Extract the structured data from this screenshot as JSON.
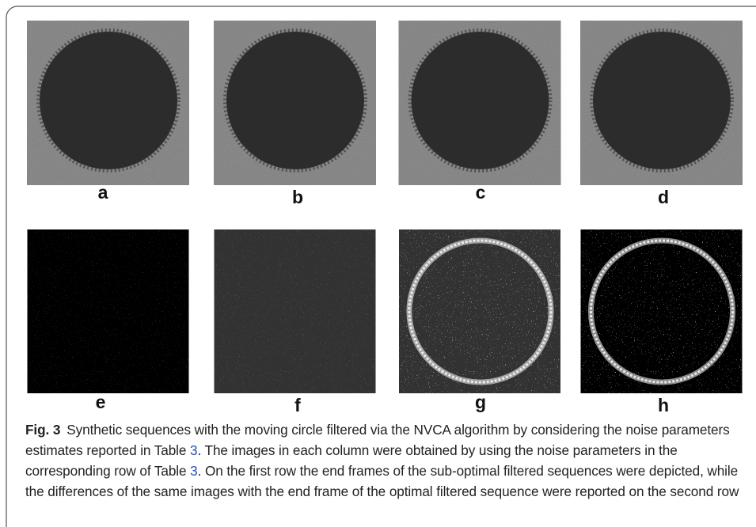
{
  "panels": [
    {
      "label": "a"
    },
    {
      "label": "b"
    },
    {
      "label": "c"
    },
    {
      "label": "d"
    },
    {
      "label": "e"
    },
    {
      "label": "f"
    },
    {
      "label": "g"
    },
    {
      "label": "h"
    }
  ],
  "caption": {
    "label": "Fig. 3",
    "segments": [
      {
        "text": "Synthetic sequences with the moving circle filtered via the NVCA algorithm by considering the noise parameters estimates reported in Table "
      },
      {
        "text": "3",
        "link": true
      },
      {
        "text": ". The images in each column were obtained by using the noise parameters in the corresponding row of Table "
      },
      {
        "text": "3",
        "link": true
      },
      {
        "text": ". On the first row the end frames of the sub-optimal filtered sequences were depicted, while the differences of the same images with the end frame of the optimal filtered sequence were reported on the second row"
      }
    ]
  }
}
